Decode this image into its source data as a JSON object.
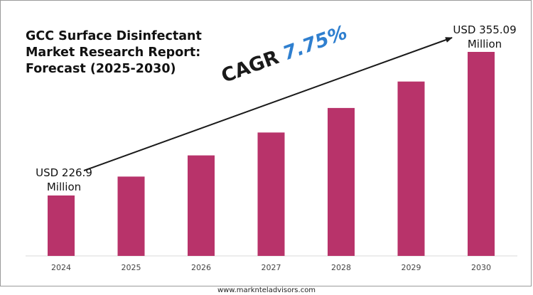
{
  "chart_data": {
    "type": "bar",
    "title_lines": [
      "GCC Surface Disinfectant",
      "Market Research Report:",
      "Forecast (2025-2030)"
    ],
    "categories": [
      "2024",
      "2025",
      "2026",
      "2027",
      "2028",
      "2029",
      "2030"
    ],
    "values": [
      226.9,
      243.8,
      262.7,
      283.1,
      305.0,
      328.6,
      355.09
    ],
    "value_unit": "USD Million",
    "start_label": {
      "line1": "USD 226.9",
      "line2": "Million"
    },
    "end_label": {
      "line1": "USD 355.09",
      "line2": "Million"
    },
    "cagr": {
      "word": "CAGR",
      "value": "7.75%"
    },
    "colors": {
      "bar": "#b8336a",
      "cagr_value": "#2f7fcf",
      "text": "#111111"
    },
    "grid": false,
    "legend": "none"
  },
  "footer": {
    "url": "www.marknteladvisors.com"
  }
}
